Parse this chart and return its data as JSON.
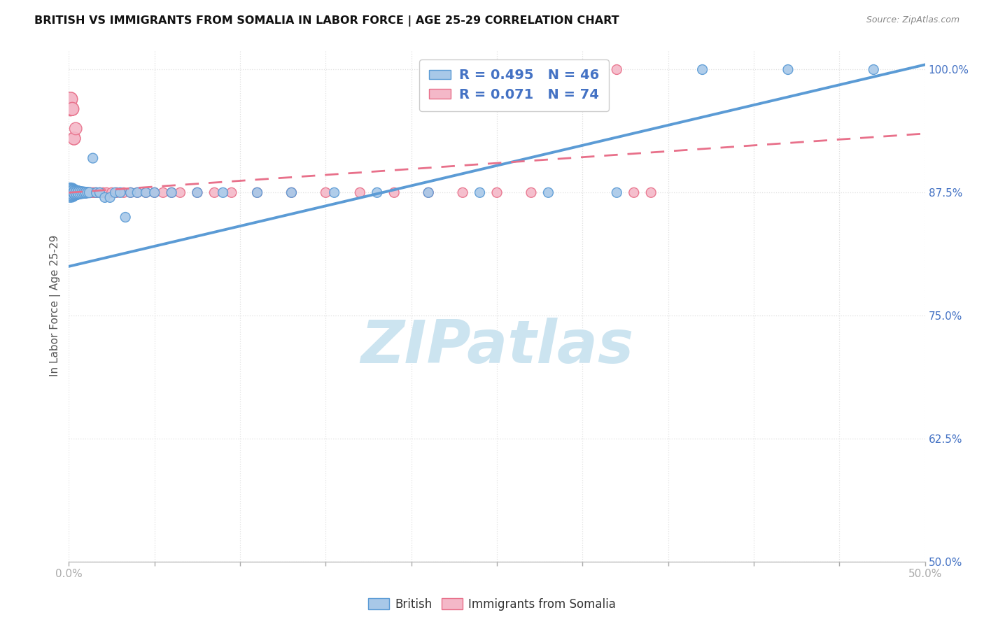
{
  "title": "BRITISH VS IMMIGRANTS FROM SOMALIA IN LABOR FORCE | AGE 25-29 CORRELATION CHART",
  "source": "Source: ZipAtlas.com",
  "ylabel": "In Labor Force | Age 25-29",
  "xlim": [
    0.0,
    0.5
  ],
  "ylim": [
    0.5,
    1.02
  ],
  "xticks": [
    0.0,
    0.05,
    0.1,
    0.15,
    0.2,
    0.25,
    0.3,
    0.35,
    0.4,
    0.45,
    0.5
  ],
  "yticks": [
    0.5,
    0.625,
    0.75,
    0.875,
    1.0
  ],
  "yticklabels": [
    "50.0%",
    "62.5%",
    "75.0%",
    "87.5%",
    "100.0%"
  ],
  "british_color": "#a8c8e8",
  "british_color_edge": "#5b9bd5",
  "somalia_color": "#f4b8c8",
  "somalia_color_edge": "#e8708a",
  "british_R": 0.495,
  "british_N": 46,
  "somalia_R": 0.071,
  "somalia_N": 74,
  "axis_color": "#4472c4",
  "grid_color": "#e0e0e0",
  "background_color": "#ffffff",
  "watermark_color": "#cce4f0",
  "british_x": [
    0.001,
    0.001,
    0.002,
    0.002,
    0.003,
    0.003,
    0.004,
    0.004,
    0.004,
    0.005,
    0.005,
    0.006,
    0.006,
    0.007,
    0.008,
    0.009,
    0.01,
    0.01,
    0.011,
    0.012,
    0.014,
    0.016,
    0.018,
    0.021,
    0.024,
    0.027,
    0.03,
    0.033,
    0.036,
    0.04,
    0.045,
    0.05,
    0.06,
    0.075,
    0.09,
    0.11,
    0.13,
    0.155,
    0.18,
    0.21,
    0.24,
    0.28,
    0.32,
    0.37,
    0.42,
    0.47
  ],
  "british_y": [
    0.875,
    0.875,
    0.875,
    0.875,
    0.875,
    0.875,
    0.875,
    0.875,
    0.875,
    0.875,
    0.875,
    0.875,
    0.875,
    0.875,
    0.875,
    0.875,
    0.875,
    0.875,
    0.875,
    0.875,
    0.91,
    0.875,
    0.875,
    0.87,
    0.87,
    0.875,
    0.875,
    0.85,
    0.875,
    0.875,
    0.875,
    0.875,
    0.875,
    0.875,
    0.875,
    0.875,
    0.875,
    0.875,
    0.875,
    0.875,
    0.875,
    0.875,
    0.875,
    1.0,
    1.0,
    1.0
  ],
  "british_sizes": [
    400,
    350,
    300,
    280,
    250,
    240,
    220,
    210,
    200,
    190,
    180,
    170,
    160,
    150,
    140,
    130,
    120,
    120,
    110,
    110,
    100,
    100,
    100,
    100,
    100,
    100,
    100,
    100,
    100,
    100,
    100,
    100,
    100,
    100,
    100,
    100,
    100,
    100,
    100,
    100,
    100,
    100,
    100,
    100,
    100,
    100
  ],
  "somalia_x": [
    0.001,
    0.001,
    0.001,
    0.001,
    0.001,
    0.001,
    0.002,
    0.002,
    0.002,
    0.002,
    0.002,
    0.002,
    0.003,
    0.003,
    0.003,
    0.003,
    0.003,
    0.003,
    0.004,
    0.004,
    0.004,
    0.004,
    0.004,
    0.005,
    0.005,
    0.005,
    0.005,
    0.006,
    0.006,
    0.006,
    0.007,
    0.007,
    0.008,
    0.008,
    0.009,
    0.009,
    0.01,
    0.01,
    0.01,
    0.011,
    0.012,
    0.013,
    0.014,
    0.015,
    0.016,
    0.018,
    0.02,
    0.022,
    0.025,
    0.028,
    0.032,
    0.036,
    0.04,
    0.045,
    0.05,
    0.055,
    0.06,
    0.065,
    0.075,
    0.085,
    0.095,
    0.11,
    0.13,
    0.15,
    0.17,
    0.19,
    0.21,
    0.23,
    0.25,
    0.27,
    0.3,
    0.32,
    0.33,
    0.34
  ],
  "somalia_y": [
    0.875,
    0.96,
    0.96,
    0.97,
    0.97,
    0.875,
    0.875,
    0.875,
    0.875,
    0.96,
    0.96,
    0.875,
    0.875,
    0.875,
    0.875,
    0.93,
    0.93,
    0.875,
    0.875,
    0.875,
    0.875,
    0.94,
    0.875,
    0.875,
    0.875,
    0.875,
    0.875,
    0.875,
    0.875,
    0.875,
    0.875,
    0.875,
    0.875,
    0.875,
    0.875,
    0.875,
    0.875,
    0.875,
    0.875,
    0.875,
    0.875,
    0.875,
    0.875,
    0.875,
    0.875,
    0.875,
    0.875,
    0.875,
    0.875,
    0.875,
    0.875,
    0.875,
    0.875,
    0.875,
    0.875,
    0.875,
    0.875,
    0.875,
    0.875,
    0.875,
    0.875,
    0.875,
    0.875,
    0.875,
    0.875,
    0.875,
    0.875,
    0.875,
    0.875,
    0.875,
    1.0,
    1.0,
    0.875,
    0.875
  ],
  "somalia_sizes": [
    200,
    200,
    200,
    200,
    200,
    200,
    180,
    180,
    180,
    180,
    180,
    180,
    170,
    170,
    170,
    170,
    170,
    170,
    160,
    160,
    160,
    160,
    160,
    150,
    150,
    150,
    150,
    140,
    140,
    140,
    130,
    130,
    120,
    120,
    115,
    115,
    110,
    110,
    110,
    105,
    100,
    100,
    100,
    100,
    100,
    100,
    100,
    100,
    100,
    100,
    100,
    100,
    100,
    100,
    100,
    100,
    100,
    100,
    100,
    100,
    100,
    100,
    100,
    100,
    100,
    100,
    100,
    100,
    100,
    100,
    100,
    100,
    100,
    100
  ],
  "brit_trend": [
    0.0,
    0.5,
    0.8,
    1.005
  ],
  "soma_trend": [
    0.0,
    0.5,
    0.875,
    0.935
  ]
}
